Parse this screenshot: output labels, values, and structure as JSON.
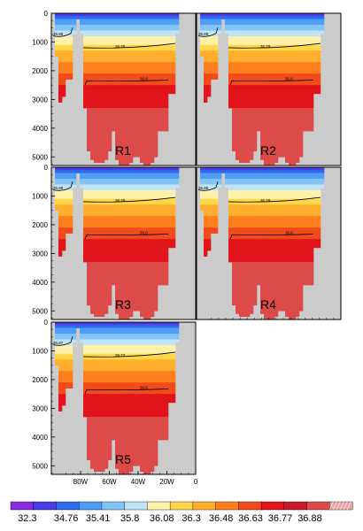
{
  "chart_data": {
    "type": "heatmap",
    "description_free": true,
    "y_ticks": [
      "0",
      "1000",
      "2000",
      "3000",
      "4000",
      "5000"
    ],
    "y_range": [
      0,
      5300
    ],
    "x_ticks": [
      "80W",
      "60W",
      "40W",
      "20W",
      "0"
    ],
    "x_tick_values": [
      80,
      60,
      40,
      20,
      0
    ],
    "panels": [
      {
        "label": "R1",
        "contours": [
          "35.89",
          "36.29",
          "36.8"
        ]
      },
      {
        "label": "R2",
        "contours": [
          "35.88",
          "36.29",
          "36.8"
        ]
      },
      {
        "label": "R3",
        "contours": [
          "35.89",
          "36.29",
          "36.8"
        ]
      },
      {
        "label": "R4",
        "contours": [
          "35.89",
          "36.29",
          "36.8"
        ]
      },
      {
        "label": "R5",
        "contours": [
          "35.87",
          "36.27",
          "36.8"
        ]
      }
    ],
    "colorbar": {
      "labels": [
        "32.3",
        "34.76",
        "35.41",
        "35.8",
        "36.08",
        "36.3",
        "36.48",
        "36.63",
        "36.77",
        "36.88"
      ],
      "colors": [
        "#8a2be2",
        "#4a3de8",
        "#2f6bf0",
        "#4f9ef5",
        "#82c4f7",
        "#bfe4f7",
        "#fff2a8",
        "#ffd84a",
        "#ffae2e",
        "#ff7f1e",
        "#f24a1a",
        "#e0141a",
        "#c81a2c",
        "#dd4a4a",
        "#f0a3a3"
      ]
    }
  }
}
